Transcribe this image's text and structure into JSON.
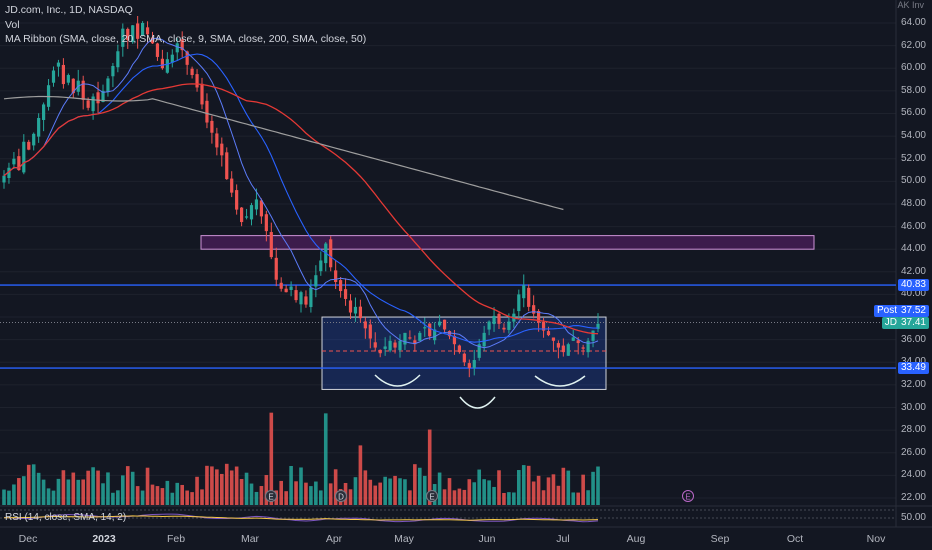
{
  "legend": {
    "symbol": "JD.com, Inc., 1D, NASDAQ",
    "vol": "Vol",
    "ma_ribbon": "MA Ribbon (SMA, close, 20, SMA, close, 9, SMA, close, 200, SMA, close, 50)",
    "rsi": "RSI (14, close, SMA, 14, 2)"
  },
  "top_cut_label": "AK Inv",
  "y_axis_ticks": [
    "64.00",
    "62.00",
    "60.00",
    "58.00",
    "56.00",
    "54.00",
    "52.00",
    "50.00",
    "48.00",
    "46.00",
    "44.00",
    "42.00",
    "40.00",
    "38.00",
    "36.00",
    "34.00",
    "32.00",
    "30.00",
    "28.00",
    "26.00",
    "24.00",
    "22.00"
  ],
  "rsi_axis_tick": "50.00",
  "price_tags": {
    "resistance": "40.83",
    "post_label": "Post",
    "post_value": "37.52",
    "jd_label": "JD",
    "jd_value": "37.41",
    "support": "33.49"
  },
  "x_axis": [
    {
      "label": "Dec",
      "bold": false
    },
    {
      "label": "2023",
      "bold": true
    },
    {
      "label": "Feb",
      "bold": false
    },
    {
      "label": "Mar",
      "bold": false
    },
    {
      "label": "Apr",
      "bold": false
    },
    {
      "label": "May",
      "bold": false
    },
    {
      "label": "Jun",
      "bold": false
    },
    {
      "label": "Jul",
      "bold": false
    },
    {
      "label": "Aug",
      "bold": false
    },
    {
      "label": "Sep",
      "bold": false
    },
    {
      "label": "Oct",
      "bold": false
    },
    {
      "label": "Nov",
      "bold": false
    }
  ],
  "event_markers": [
    "E",
    "D",
    "E",
    "E"
  ],
  "colors": {
    "background": "#131722",
    "up": "#26a69a",
    "down": "#ef5350",
    "sma20": "#2962ff",
    "sma50": "#e53935",
    "sma200": "#9e9e9e",
    "level_line": "#2962ff",
    "zone_fill": "#9c27b0",
    "box_fill": "#2962ff",
    "rsi": "#7e57c2",
    "rsi_ma": "#f7c948"
  },
  "chart_data": {
    "type": "candlestick",
    "ylim": [
      21,
      66
    ],
    "levels": {
      "resistance": 40.83,
      "support": 33.49,
      "box_top": 38.0,
      "box_mid": 35.0,
      "box_bottom": 31.6,
      "zone_low": 44.0,
      "zone_high": 45.2
    },
    "close_series_description_free": true,
    "closes": [
      50.5,
      51.2,
      52.0,
      51.0,
      53.5,
      52.8,
      54.2,
      55.6,
      56.8,
      58.5,
      59.8,
      60.5,
      58.6,
      59.4,
      57.8,
      58.9,
      57.2,
      56.5,
      57.5,
      56.9,
      58.0,
      59.1,
      60.2,
      61.5,
      63.5,
      62.5,
      63.8,
      62.6,
      64.0,
      63.0,
      62.2,
      61.0,
      60.0,
      60.8,
      61.2,
      62.2,
      61.6,
      60.3,
      59.4,
      58.3,
      56.8,
      55.2,
      54.3,
      53.0,
      52.3,
      50.2,
      49.0,
      47.5,
      46.4,
      46.9,
      47.9,
      48.4,
      46.9,
      45.6,
      43.3,
      41.3,
      40.5,
      40.2,
      40.7,
      39.5,
      40.2,
      39.1,
      40.6,
      41.7,
      43.0,
      44.5,
      42.4,
      41.1,
      40.3,
      39.6,
      38.4,
      38.9,
      37.9,
      37.0,
      36.1,
      35.3,
      34.8,
      35.4,
      35.9,
      35.3,
      35.9,
      36.6,
      36.1,
      35.6,
      36.6,
      37.1,
      36.3,
      36.9,
      37.6,
      36.9,
      36.3,
      35.6,
      34.9,
      34.0,
      33.5,
      34.2,
      35.6,
      36.6,
      37.6,
      38.1,
      37.4,
      36.9,
      37.6,
      38.3,
      40.0,
      40.8,
      38.9,
      38.3,
      37.5,
      36.8,
      36.4,
      35.9,
      35.3,
      34.9,
      35.6,
      36.2,
      35.7,
      35.2,
      35.9,
      36.8,
      37.4
    ],
    "sma20_description_free": true
  }
}
